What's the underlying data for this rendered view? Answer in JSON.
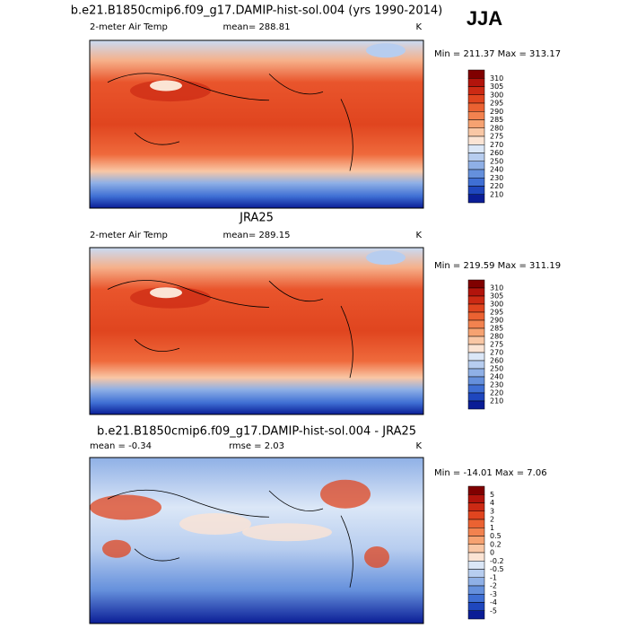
{
  "season": "JJA",
  "panels": [
    {
      "title": "b.e21.B1850cmip6.f09_g17.DAMIP-hist-sol.004 (yrs 1990-2014)",
      "left_label": "2-meter Air Temp",
      "center_label": "mean= 288.81",
      "right_label": "K",
      "minmax": "Min = 211.37 Max = 313.17",
      "colorbar": {
        "labels": [
          "310",
          "305",
          "300",
          "295",
          "290",
          "285",
          "280",
          "275",
          "270",
          "260",
          "250",
          "240",
          "230",
          "220",
          "210"
        ],
        "colors": [
          "#800000",
          "#b2140c",
          "#cc2a14",
          "#e0451f",
          "#eb6232",
          "#f2824f",
          "#f6a271",
          "#f9c7a5",
          "#fbe4d4",
          "#dbe7f7",
          "#b7cdef",
          "#8fb0e6",
          "#6590dc",
          "#3f6fd4",
          "#1f47be",
          "#0a1d96"
        ]
      }
    },
    {
      "title": "JRA25",
      "left_label": "2-meter Air Temp",
      "center_label": "mean= 289.15",
      "right_label": "K",
      "minmax": "Min = 219.59 Max = 311.19",
      "colorbar": {
        "labels": [
          "310",
          "305",
          "300",
          "295",
          "290",
          "285",
          "280",
          "275",
          "270",
          "260",
          "250",
          "240",
          "230",
          "220",
          "210"
        ],
        "colors": [
          "#800000",
          "#b2140c",
          "#cc2a14",
          "#e0451f",
          "#eb6232",
          "#f2824f",
          "#f6a271",
          "#f9c7a5",
          "#fbe4d4",
          "#dbe7f7",
          "#b7cdef",
          "#8fb0e6",
          "#6590dc",
          "#3f6fd4",
          "#1f47be",
          "#0a1d96"
        ]
      }
    },
    {
      "title": "b.e21.B1850cmip6.f09_g17.DAMIP-hist-sol.004 - JRA25",
      "left_label": "mean = -0.34",
      "center_label": "rmse = 2.03",
      "right_label": "K",
      "minmax": "Min = -14.01 Max = 7.06",
      "colorbar": {
        "labels": [
          "5",
          "4",
          "3",
          "2",
          "1",
          "0.5",
          "0.2",
          "0",
          "-0.2",
          "-0.5",
          "-1",
          "-2",
          "-3",
          "-4",
          "-5"
        ],
        "colors": [
          "#800000",
          "#b2140c",
          "#cc2a14",
          "#e0451f",
          "#eb6232",
          "#f2824f",
          "#f6a271",
          "#f9c7a5",
          "#fbe4d4",
          "#dbe7f7",
          "#b7cdef",
          "#8fb0e6",
          "#6590dc",
          "#3f6fd4",
          "#1f47be",
          "#0a1d96"
        ]
      }
    }
  ]
}
